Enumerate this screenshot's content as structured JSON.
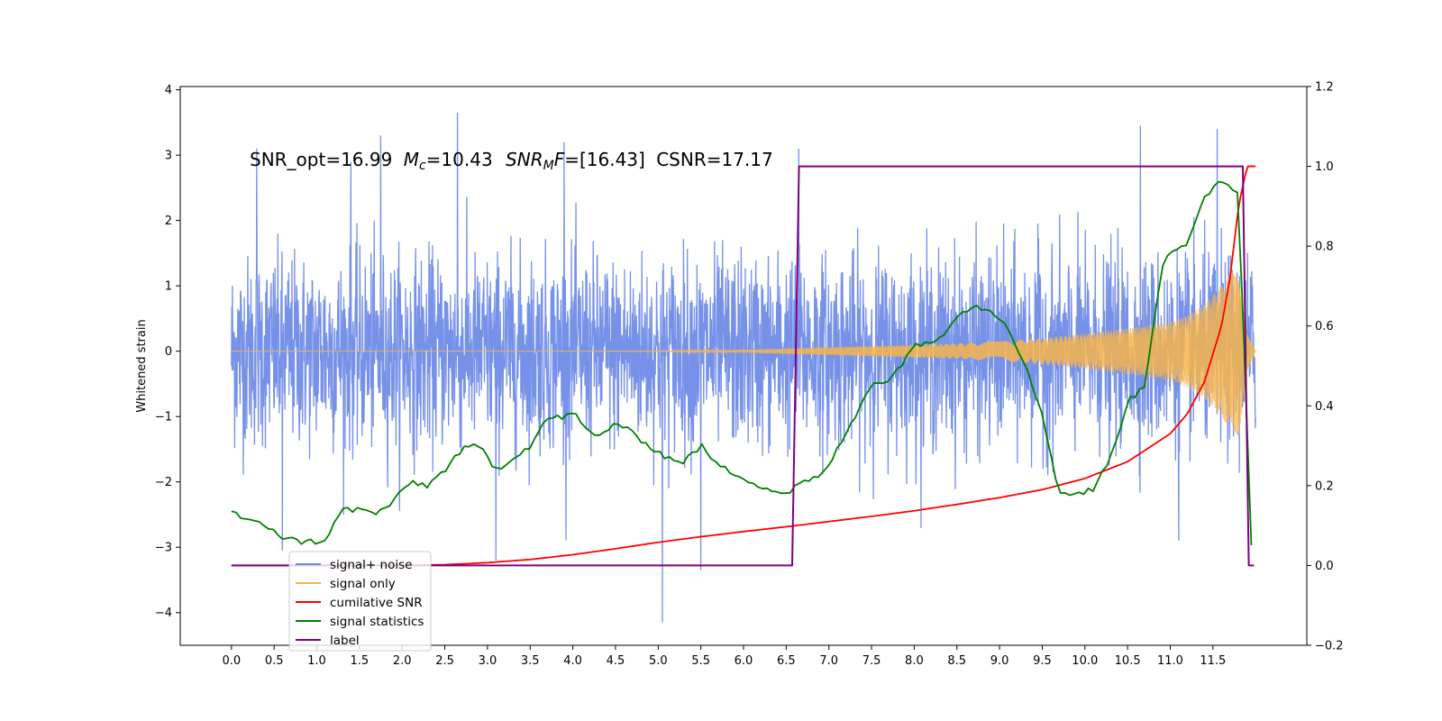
{
  "chart_data": {
    "type": "line",
    "annotation": {
      "snr_opt_label": "SNR_opt=16.99",
      "mc_symbol": "M",
      "mc_subscript": "c",
      "mc_value": "=10.43",
      "snrmf_symbol": "SNR",
      "snrmf_subscript": "M",
      "snrmf_f": "F",
      "snrmf_value": "=[16.43]",
      "csnr_label": "CSNR=17.17"
    },
    "ylabel": "Whitened strain",
    "left_axis": {
      "ylim": [
        -4.5,
        4.05
      ],
      "ticks": [
        4,
        3,
        2,
        1,
        0,
        -1,
        -2,
        -3,
        -4
      ],
      "tick_labels": [
        "4",
        "3",
        "2",
        "1",
        "0",
        "−1",
        "−2",
        "−3",
        "−4"
      ]
    },
    "right_axis": {
      "ylim": [
        -0.2,
        1.2
      ],
      "ticks": [
        1.2,
        1.0,
        0.8,
        0.6,
        0.4,
        0.2,
        0.0,
        -0.2
      ],
      "tick_labels": [
        "1.2",
        "1.0",
        "0.8",
        "0.6",
        "0.4",
        "0.2",
        "0.0",
        "−0.2"
      ]
    },
    "xlim": [
      -0.6,
      12.6
    ],
    "x_ticks": [
      0.0,
      0.5,
      1.0,
      1.5,
      2.0,
      2.5,
      3.0,
      3.5,
      4.0,
      4.5,
      5.0,
      5.5,
      6.0,
      6.5,
      7.0,
      7.5,
      8.0,
      8.5,
      9.0,
      9.5,
      10.0,
      10.5,
      11.0,
      11.5
    ],
    "x_tick_labels": [
      "0.0",
      "0.5",
      "1.0",
      "1.5",
      "2.0",
      "2.5",
      "3.0",
      "3.5",
      "4.0",
      "4.5",
      "5.0",
      "5.5",
      "6.0",
      "6.5",
      "7.0",
      "7.5",
      "8.0",
      "8.5",
      "9.0",
      "9.5",
      "10.0",
      "10.5",
      "11.0",
      "11.5"
    ],
    "legend": {
      "placement": "lower-left",
      "entries": [
        {
          "name": "signal+ noise",
          "color": "#6a88e6"
        },
        {
          "name": "signal only",
          "color": "#f7b44b"
        },
        {
          "name": "cumilative SNR",
          "color": "#ff0000"
        },
        {
          "name": "signal statistics",
          "color": "#008000"
        },
        {
          "name": "label",
          "color": "#800080"
        }
      ]
    },
    "series": [
      {
        "name": "signal+ noise",
        "axis": "left",
        "color": "#6a88e6",
        "x_range": [
          0.0,
          12.0
        ],
        "typical_amplitude": 1.5,
        "peaks": [
          {
            "x": 0.3,
            "y": 3.1
          },
          {
            "x": 1.4,
            "y": 2.9
          },
          {
            "x": 1.75,
            "y": 3.3
          },
          {
            "x": 2.65,
            "y": 3.65
          },
          {
            "x": 3.9,
            "y": 3.2
          },
          {
            "x": 6.65,
            "y": 3.1
          },
          {
            "x": 10.65,
            "y": 3.45
          },
          {
            "x": 11.55,
            "y": 3.4
          },
          {
            "x": 5.05,
            "y": -4.15
          },
          {
            "x": 5.5,
            "y": -3.35
          },
          {
            "x": 3.1,
            "y": -3.2
          },
          {
            "x": 0.6,
            "y": -3.05
          },
          {
            "x": 11.1,
            "y": -2.9
          }
        ]
      },
      {
        "name": "signal only",
        "axis": "left",
        "color": "#f7b44b",
        "x": [
          0.0,
          1.0,
          2.0,
          3.0,
          4.0,
          5.0,
          6.0,
          6.5,
          7.0,
          7.5,
          8.0,
          8.5,
          9.0,
          9.5,
          10.0,
          10.5,
          11.0,
          11.2,
          11.4,
          11.6,
          11.7,
          11.8,
          11.9,
          12.0
        ],
        "envelope": [
          0.0,
          0.0,
          0.0,
          0.0,
          0.0,
          0.005,
          0.02,
          0.04,
          0.06,
          0.08,
          0.1,
          0.12,
          0.15,
          0.2,
          0.27,
          0.35,
          0.45,
          0.55,
          0.72,
          1.0,
          1.2,
          1.3,
          0.3,
          0.0
        ]
      },
      {
        "name": "cumilative SNR",
        "axis": "right",
        "color": "#ff0000",
        "x": [
          0.0,
          1.0,
          2.0,
          2.5,
          3.0,
          3.5,
          4.0,
          4.5,
          5.0,
          5.5,
          6.0,
          6.5,
          7.0,
          7.5,
          8.0,
          8.5,
          9.0,
          9.5,
          10.0,
          10.5,
          11.0,
          11.2,
          11.4,
          11.6,
          11.7,
          11.8,
          11.9,
          12.0
        ],
        "y": [
          0.0,
          0.0,
          0.0,
          0.002,
          0.007,
          0.015,
          0.027,
          0.042,
          0.058,
          0.072,
          0.085,
          0.097,
          0.11,
          0.123,
          0.137,
          0.153,
          0.17,
          0.19,
          0.218,
          0.26,
          0.33,
          0.38,
          0.46,
          0.6,
          0.72,
          0.9,
          1.0,
          1.0
        ]
      },
      {
        "name": "signal statistics",
        "axis": "right",
        "color": "#008000",
        "x": [
          0.0,
          0.2,
          0.4,
          0.5,
          0.6,
          0.7,
          0.8,
          1.0,
          1.1,
          1.3,
          1.5,
          1.7,
          1.9,
          2.1,
          2.3,
          2.5,
          2.7,
          2.9,
          3.1,
          3.3,
          3.5,
          3.7,
          3.9,
          4.0,
          4.1,
          4.3,
          4.5,
          4.7,
          4.9,
          5.1,
          5.3,
          5.5,
          5.7,
          5.9,
          6.1,
          6.3,
          6.5,
          6.7,
          6.9,
          7.1,
          7.3,
          7.5,
          7.7,
          7.9,
          8.0,
          8.1,
          8.3,
          8.5,
          8.7,
          8.9,
          9.1,
          9.3,
          9.5,
          9.7,
          9.9,
          10.1,
          10.3,
          10.5,
          10.7,
          10.9,
          11.0,
          11.2,
          11.4,
          11.6,
          11.8,
          11.95
        ],
        "y": [
          0.135,
          0.11,
          0.1,
          0.09,
          0.07,
          0.065,
          0.06,
          0.06,
          0.065,
          0.14,
          0.14,
          0.13,
          0.16,
          0.21,
          0.2,
          0.24,
          0.29,
          0.3,
          0.24,
          0.27,
          0.3,
          0.37,
          0.37,
          0.39,
          0.35,
          0.32,
          0.36,
          0.33,
          0.3,
          0.27,
          0.26,
          0.3,
          0.25,
          0.23,
          0.21,
          0.19,
          0.18,
          0.21,
          0.22,
          0.29,
          0.37,
          0.46,
          0.46,
          0.52,
          0.56,
          0.55,
          0.57,
          0.63,
          0.65,
          0.64,
          0.6,
          0.5,
          0.38,
          0.18,
          0.18,
          0.19,
          0.27,
          0.41,
          0.45,
          0.75,
          0.79,
          0.8,
          0.92,
          0.97,
          0.93,
          0.05
        ]
      },
      {
        "name": "label",
        "axis": "right",
        "color": "#800080",
        "x": [
          0.0,
          6.57,
          6.65,
          11.85,
          11.92,
          11.98
        ],
        "y": [
          0.0,
          0.0,
          1.0,
          1.0,
          0.0,
          0.0
        ]
      }
    ],
    "colors": {
      "signal_noise": "#6a88e6",
      "signal_only": "#f7b44b",
      "cumulative_snr": "#ff0000",
      "statistics": "#008000",
      "label": "#800080"
    }
  }
}
